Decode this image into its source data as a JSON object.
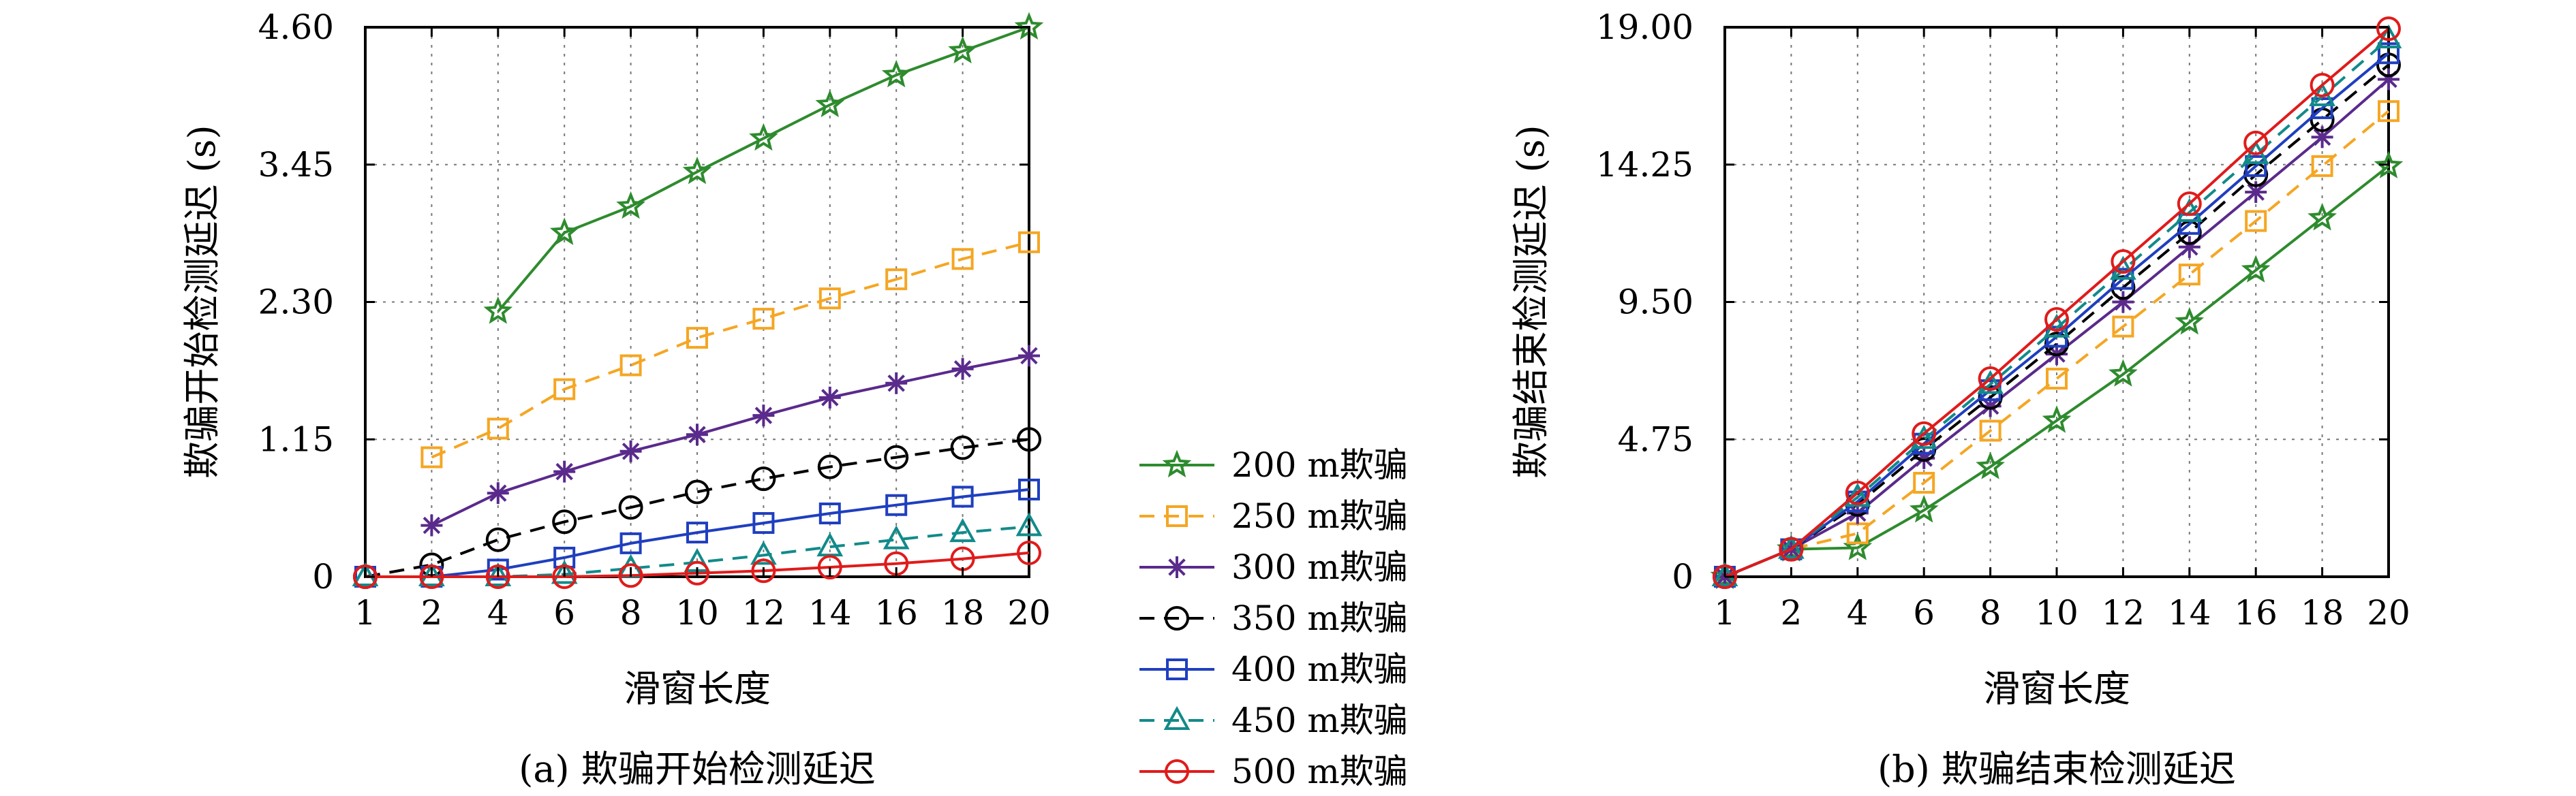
{
  "legend": [
    {
      "label": "200 m欺骗",
      "color": "#2e8b2e",
      "marker": "star-icon",
      "dash": "solid"
    },
    {
      "label": "250 m欺骗",
      "color": "#f5a623",
      "marker": "square-icon",
      "dash": "dashed"
    },
    {
      "label": "300 m欺骗",
      "color": "#5a2a8c",
      "marker": "asterisk-icon",
      "dash": "solid"
    },
    {
      "label": "350 m欺骗",
      "color": "#000000",
      "marker": "circle-icon",
      "dash": "dashed"
    },
    {
      "label": "400 m欺骗",
      "color": "#1f3fbf",
      "marker": "square-icon",
      "dash": "solid"
    },
    {
      "label": "450 m欺骗",
      "color": "#128a8a",
      "marker": "triangle-icon",
      "dash": "dashed"
    },
    {
      "label": "500 m欺骗",
      "color": "#e01b1b",
      "marker": "circle-icon",
      "dash": "solid"
    }
  ],
  "chart_data": [
    {
      "type": "line",
      "caption": "(a) 欺骗开始检测延迟",
      "xlabel": "滑窗长度",
      "ylabel": "欺骗开始检测延迟 (s)",
      "x_ticks": [
        "1",
        "2",
        "4",
        "6",
        "8",
        "10",
        "12",
        "14",
        "16",
        "18",
        "20"
      ],
      "y_ticks": [
        "0",
        "1.15",
        "2.30",
        "3.45",
        "4.60"
      ],
      "ylim": [
        0,
        4.6
      ],
      "grid": true,
      "series": [
        {
          "name": "200 m欺骗",
          "x": [
            4,
            6,
            8,
            10,
            12,
            14,
            16,
            18,
            20
          ],
          "values": [
            2.22,
            2.88,
            3.1,
            3.39,
            3.67,
            3.95,
            4.2,
            4.4,
            4.6
          ]
        },
        {
          "name": "250 m欺骗",
          "x": [
            2,
            4,
            6,
            8,
            10,
            12,
            14,
            16,
            18,
            20
          ],
          "values": [
            1.0,
            1.24,
            1.57,
            1.77,
            2.0,
            2.16,
            2.33,
            2.49,
            2.66,
            2.8
          ]
        },
        {
          "name": "300 m欺骗",
          "x": [
            2,
            4,
            6,
            8,
            10,
            12,
            14,
            16,
            18,
            20
          ],
          "values": [
            0.43,
            0.7,
            0.88,
            1.05,
            1.19,
            1.35,
            1.5,
            1.62,
            1.74,
            1.85
          ]
        },
        {
          "name": "350 m欺骗",
          "x": [
            1,
            2,
            4,
            6,
            8,
            10,
            12,
            14,
            16,
            18,
            20
          ],
          "values": [
            0,
            0.1,
            0.31,
            0.46,
            0.58,
            0.71,
            0.82,
            0.92,
            1.0,
            1.08,
            1.15
          ]
        },
        {
          "name": "400 m欺骗",
          "x": [
            1,
            2,
            4,
            6,
            8,
            10,
            12,
            14,
            16,
            18,
            20
          ],
          "values": [
            0,
            0.0,
            0.06,
            0.16,
            0.28,
            0.37,
            0.45,
            0.53,
            0.6,
            0.67,
            0.73
          ]
        },
        {
          "name": "450 m欺骗",
          "x": [
            1,
            2,
            4,
            6,
            8,
            10,
            12,
            14,
            16,
            18,
            20
          ],
          "values": [
            0,
            0,
            0.0,
            0.02,
            0.07,
            0.12,
            0.18,
            0.25,
            0.31,
            0.37,
            0.42
          ]
        },
        {
          "name": "500 m欺骗",
          "x": [
            1,
            2,
            4,
            6,
            8,
            10,
            12,
            14,
            16,
            18,
            20
          ],
          "values": [
            0,
            0,
            0,
            0,
            0.01,
            0.03,
            0.05,
            0.08,
            0.11,
            0.15,
            0.2
          ]
        }
      ]
    },
    {
      "type": "line",
      "caption": "(b) 欺骗结束检测延迟",
      "xlabel": "滑窗长度",
      "ylabel": "欺骗结束检测延迟 (s)",
      "x_ticks": [
        "1",
        "2",
        "4",
        "6",
        "8",
        "10",
        "12",
        "14",
        "16",
        "18",
        "20"
      ],
      "y_ticks": [
        "0",
        "4.75",
        "9.50",
        "14.25",
        "19.00"
      ],
      "ylim": [
        0,
        19
      ],
      "grid": true,
      "series": [
        {
          "name": "200 m欺骗",
          "x": [
            1,
            2,
            4,
            6,
            8,
            10,
            12,
            14,
            16,
            18,
            20
          ],
          "values": [
            0,
            0.95,
            1.0,
            2.3,
            3.8,
            5.4,
            7.0,
            8.8,
            10.6,
            12.4,
            14.2
          ]
        },
        {
          "name": "250 m欺骗",
          "x": [
            1,
            2,
            4,
            6,
            8,
            10,
            12,
            14,
            16,
            18,
            20
          ],
          "values": [
            0,
            0.95,
            1.5,
            3.25,
            5.05,
            6.85,
            8.65,
            10.45,
            12.3,
            14.2,
            16.1
          ]
        },
        {
          "name": "300 m欺骗",
          "x": [
            1,
            2,
            4,
            6,
            8,
            10,
            12,
            14,
            16,
            18,
            20
          ],
          "values": [
            0,
            0.95,
            2.2,
            4.1,
            5.9,
            7.7,
            9.5,
            11.4,
            13.3,
            15.2,
            17.2
          ]
        },
        {
          "name": "350 m欺骗",
          "x": [
            1,
            2,
            4,
            6,
            8,
            10,
            12,
            14,
            16,
            18,
            20
          ],
          "values": [
            0,
            0.95,
            2.5,
            4.4,
            6.2,
            8.05,
            10.0,
            11.9,
            13.9,
            15.8,
            17.7
          ]
        },
        {
          "name": "400 m欺骗",
          "x": [
            1,
            2,
            4,
            6,
            8,
            10,
            12,
            14,
            16,
            18,
            20
          ],
          "values": [
            0,
            0.95,
            2.6,
            4.6,
            6.45,
            8.3,
            10.3,
            12.2,
            14.2,
            16.2,
            18.1
          ]
        },
        {
          "name": "450 m欺骗",
          "x": [
            1,
            2,
            4,
            6,
            8,
            10,
            12,
            14,
            16,
            18,
            20
          ],
          "values": [
            0,
            0.95,
            2.75,
            4.75,
            6.65,
            8.6,
            10.6,
            12.6,
            14.6,
            16.6,
            18.6
          ]
        },
        {
          "name": "500 m欺骗",
          "x": [
            1,
            2,
            4,
            6,
            8,
            10,
            12,
            14,
            16,
            18,
            20
          ],
          "values": [
            0,
            0.95,
            2.9,
            4.95,
            6.85,
            8.9,
            10.9,
            12.9,
            15.0,
            17.0,
            18.95
          ]
        }
      ]
    }
  ]
}
